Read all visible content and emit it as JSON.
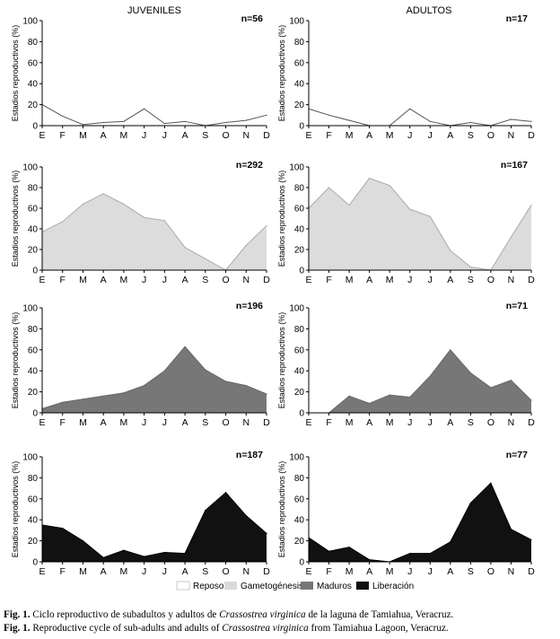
{
  "columns": [
    "JUVENILES",
    "ADULTOS"
  ],
  "y_axis_label": "Estadios reproductivos (%)",
  "months": [
    "E",
    "F",
    "M",
    "A",
    "M",
    "J",
    "J",
    "A",
    "S",
    "O",
    "N",
    "D"
  ],
  "y_ticks": [
    "0",
    "20",
    "40",
    "60",
    "80",
    "100"
  ],
  "legend": [
    {
      "label": "Reposo",
      "color": "#ffffff"
    },
    {
      "label": "Gametogénesis",
      "color": "#d9d9d9"
    },
    {
      "label": "Maduros",
      "color": "#777777"
    },
    {
      "label": "Liberación",
      "color": "#111111"
    }
  ],
  "caption": {
    "es": {
      "prefix": "Fig. 1.",
      "text_before": " Ciclo reproductivo de subadultos y adultos de ",
      "species": "Crassostrea virginica",
      "text_after": " de la laguna de Tamiahua, Veracruz."
    },
    "en": {
      "prefix": "Fig. 1.",
      "text_before": " Reproductive cycle of sub-adults and adults of ",
      "species": "Crassostrea virginica",
      "text_after": " from Tamiahua Lagoon, Veracruz."
    }
  },
  "chart_data": [
    {
      "type": "area",
      "column": "JUVENILES",
      "stage": "Reposo",
      "n_label": "n=56",
      "fill": "#ffffff",
      "stroke": "#555555",
      "ylim": [
        0,
        100
      ],
      "categories": [
        "E",
        "F",
        "M",
        "A",
        "M",
        "J",
        "J",
        "A",
        "S",
        "O",
        "N",
        "D"
      ],
      "values": [
        20,
        9,
        1,
        3,
        4,
        16,
        2,
        4,
        0,
        3,
        5,
        10
      ]
    },
    {
      "type": "area",
      "column": "ADULTOS",
      "stage": "Reposo",
      "n_label": "n=17",
      "fill": "#ffffff",
      "stroke": "#555555",
      "ylim": [
        0,
        100
      ],
      "categories": [
        "E",
        "F",
        "M",
        "A",
        "M",
        "J",
        "J",
        "A",
        "S",
        "O",
        "N",
        "D"
      ],
      "values": [
        16,
        10,
        5,
        0,
        0,
        16,
        4,
        0,
        3,
        0,
        6,
        4
      ]
    },
    {
      "type": "area",
      "column": "JUVENILES",
      "stage": "Gametogénesis",
      "n_label": "n=292",
      "fill": "#dcdcdc",
      "stroke": "#aaaaaa",
      "ylim": [
        0,
        100
      ],
      "categories": [
        "E",
        "F",
        "M",
        "A",
        "M",
        "J",
        "J",
        "A",
        "S",
        "O",
        "N",
        "D"
      ],
      "values": [
        37,
        47,
        64,
        74,
        64,
        51,
        48,
        22,
        11,
        0,
        24,
        43
      ]
    },
    {
      "type": "area",
      "column": "ADULTOS",
      "stage": "Gametogénesis",
      "n_label": "n=167",
      "fill": "#dcdcdc",
      "stroke": "#aaaaaa",
      "ylim": [
        0,
        100
      ],
      "categories": [
        "E",
        "F",
        "M",
        "A",
        "M",
        "J",
        "J",
        "A",
        "S",
        "O",
        "N",
        "D"
      ],
      "values": [
        60,
        80,
        63,
        89,
        82,
        59,
        52,
        19,
        3,
        0,
        32,
        63
      ]
    },
    {
      "type": "area",
      "column": "JUVENILES",
      "stage": "Maduros",
      "n_label": "n=196",
      "fill": "#777777",
      "stroke": "#666666",
      "ylim": [
        0,
        100
      ],
      "categories": [
        "E",
        "F",
        "M",
        "A",
        "M",
        "J",
        "J",
        "A",
        "S",
        "O",
        "N",
        "D"
      ],
      "values": [
        4,
        10,
        13,
        16,
        19,
        26,
        40,
        63,
        41,
        30,
        26,
        18
      ]
    },
    {
      "type": "area",
      "column": "ADULTOS",
      "stage": "Maduros",
      "n_label": "n=71",
      "fill": "#777777",
      "stroke": "#666666",
      "ylim": [
        0,
        100
      ],
      "categories": [
        "E",
        "F",
        "M",
        "A",
        "M",
        "J",
        "J",
        "A",
        "S",
        "O",
        "N",
        "D"
      ],
      "values": [
        0,
        0,
        16,
        9,
        17,
        15,
        35,
        60,
        38,
        24,
        31,
        12
      ]
    },
    {
      "type": "area",
      "column": "JUVENILES",
      "stage": "Liberación",
      "n_label": "n=187",
      "fill": "#111111",
      "stroke": "#000000",
      "ylim": [
        0,
        100
      ],
      "categories": [
        "E",
        "F",
        "M",
        "A",
        "M",
        "J",
        "J",
        "A",
        "S",
        "O",
        "N",
        "D"
      ],
      "values": [
        35,
        32,
        20,
        4,
        11,
        5,
        9,
        8,
        49,
        66,
        44,
        27
      ]
    },
    {
      "type": "area",
      "column": "ADULTOS",
      "stage": "Liberación",
      "n_label": "n=77",
      "fill": "#111111",
      "stroke": "#000000",
      "ylim": [
        0,
        100
      ],
      "categories": [
        "E",
        "F",
        "M",
        "A",
        "M",
        "J",
        "J",
        "A",
        "S",
        "O",
        "N",
        "D"
      ],
      "values": [
        23,
        10,
        14,
        2,
        0,
        8,
        8,
        19,
        56,
        75,
        31,
        21
      ]
    }
  ]
}
